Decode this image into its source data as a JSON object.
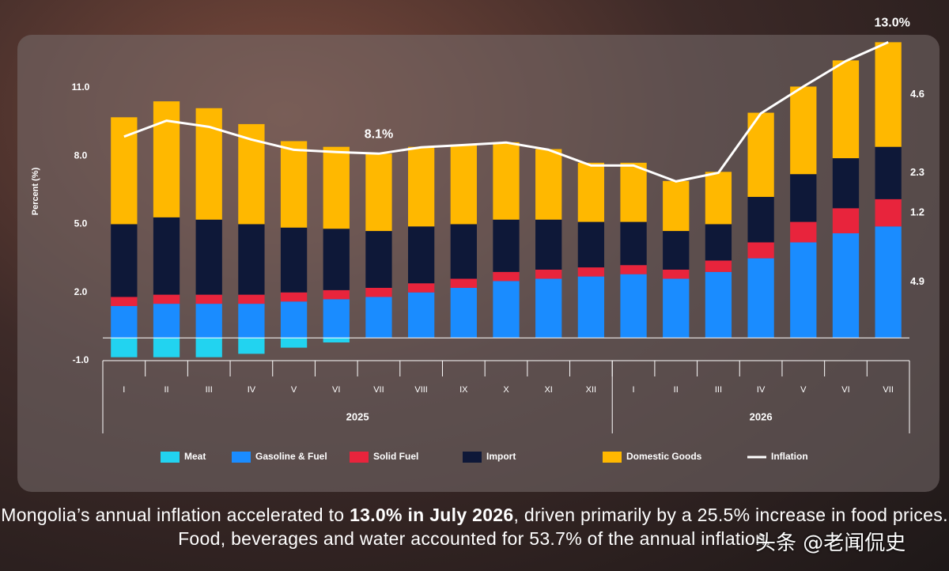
{
  "chart_data": {
    "type": "bar",
    "y_label": "Percent (%)",
    "categories": [
      "I",
      "II",
      "III",
      "IV",
      "V",
      "VI",
      "VII",
      "VIII",
      "IX",
      "X",
      "XI",
      "XII",
      "I",
      "II",
      "III",
      "IV",
      "V",
      "VI",
      "VII"
    ],
    "groups": [
      {
        "label": "2025",
        "size": 12
      },
      {
        "label": "2026",
        "size": 7
      }
    ],
    "ylim": [
      -1,
      13.5
    ],
    "yticks": [
      {
        "value": -1,
        "label": "-1.0"
      },
      {
        "value": 2,
        "label": "2.0"
      },
      {
        "value": 5,
        "label": "5.0"
      },
      {
        "value": 8,
        "label": "8.0"
      },
      {
        "value": 11,
        "label": "11.0"
      }
    ],
    "series": [
      {
        "name": "Meat",
        "color": "#22d3f0",
        "values": [
          -0.85,
          -0.85,
          -0.85,
          -0.7,
          -0.43,
          -0.2,
          0,
          0,
          0,
          0,
          0,
          0,
          0,
          0,
          0,
          0,
          0,
          0,
          0
        ]
      },
      {
        "name": "Gasoline & Fuel",
        "color": "#1a8cff",
        "values": [
          1.4,
          1.5,
          1.5,
          1.5,
          1.6,
          1.7,
          1.8,
          2.0,
          2.2,
          2.5,
          2.6,
          2.7,
          2.8,
          2.6,
          2.9,
          3.5,
          4.2,
          4.6,
          4.9
        ]
      },
      {
        "name": "Solid Fuel",
        "color": "#e8243c",
        "values": [
          0.4,
          0.4,
          0.4,
          0.4,
          0.4,
          0.4,
          0.4,
          0.4,
          0.4,
          0.4,
          0.4,
          0.4,
          0.4,
          0.4,
          0.5,
          0.7,
          0.9,
          1.1,
          1.2
        ]
      },
      {
        "name": "Import",
        "color": "#0e1838",
        "values": [
          3.2,
          3.4,
          3.3,
          3.1,
          2.85,
          2.7,
          2.5,
          2.5,
          2.4,
          2.3,
          2.2,
          2.0,
          1.9,
          1.7,
          1.6,
          2.0,
          2.1,
          2.2,
          2.3
        ]
      },
      {
        "name": "Domestic Goods",
        "color": "#ffb800",
        "values": [
          4.7,
          5.1,
          4.9,
          4.4,
          3.8,
          3.6,
          3.4,
          3.5,
          3.5,
          3.4,
          3.1,
          2.6,
          2.6,
          2.2,
          2.3,
          3.7,
          3.85,
          4.3,
          4.6
        ]
      },
      {
        "name": "Inflation",
        "color": "#ffffff",
        "type": "line",
        "values": [
          8.85,
          9.55,
          9.28,
          8.72,
          8.27,
          8.17,
          8.1,
          8.38,
          8.48,
          8.59,
          8.27,
          7.58,
          7.58,
          6.88,
          7.26,
          9.87,
          11.05,
          12.17,
          13.0
        ],
        "value_labels": [
          null,
          null,
          null,
          null,
          null,
          null,
          "8.1%",
          null,
          null,
          null,
          null,
          null,
          null,
          null,
          null,
          null,
          null,
          null,
          "13.0%"
        ]
      }
    ]
  },
  "caption": {
    "part1": "Mongolia’s annual inflation accelerated to ",
    "bold": "13.0% in July 2026",
    "part2": ", driven primarily by a 25.5% increase in food prices. Food, beverages and water accounted for 53.7% of the annual inflation."
  },
  "watermark": "头条 @老闻侃史"
}
